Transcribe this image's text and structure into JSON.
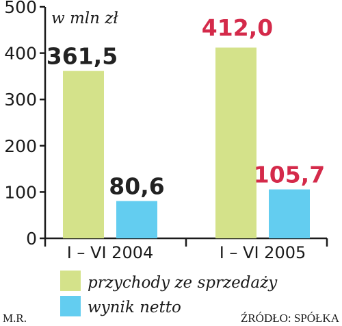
{
  "chart_data": {
    "type": "bar",
    "unit_label": "w mln zł",
    "categories": [
      "I – VI 2004",
      "I – VI 2005"
    ],
    "series": [
      {
        "name": "przychody ze sprzedaży",
        "color": "#d4e28a",
        "values": [
          361.5,
          412.0
        ],
        "value_labels": [
          "361,5",
          "412,0"
        ],
        "label_colors": [
          "#222222",
          "#d42a4a"
        ]
      },
      {
        "name": "wynik netto",
        "color": "#63cdf0",
        "values": [
          80.6,
          105.7
        ],
        "value_labels": [
          "80,6",
          "105,7"
        ],
        "label_colors": [
          "#222222",
          "#d42a4a"
        ]
      }
    ],
    "y_ticks": [
      "0",
      "100",
      "200",
      "300",
      "400",
      "500"
    ],
    "ylim": [
      0,
      500
    ],
    "grid": false
  },
  "footer": {
    "author": "M.R.",
    "source": "ŹRÓDŁO: SPÓŁKA"
  }
}
